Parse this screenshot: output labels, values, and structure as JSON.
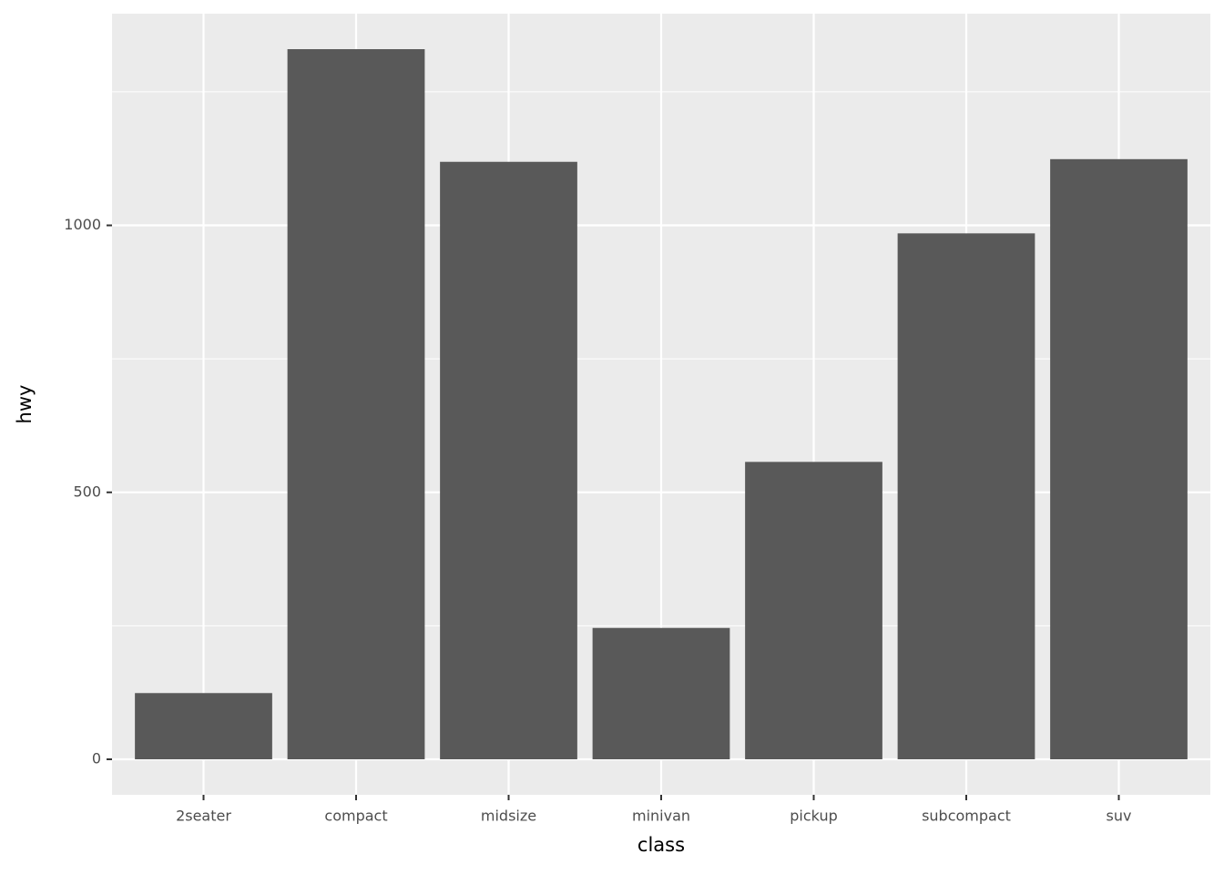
{
  "chart_data": {
    "type": "bar",
    "x_label": "class",
    "y_label": "hwy",
    "categories": [
      "2seater",
      "compact",
      "midsize",
      "minivan",
      "pickup",
      "subcompact",
      "suv"
    ],
    "values": [
      124,
      1330,
      1119,
      246,
      557,
      985,
      1124
    ],
    "color": "#595959",
    "ylim": [
      -66.5,
      1396.5
    ],
    "yticks": [
      0,
      500,
      1000
    ],
    "grid": true
  }
}
